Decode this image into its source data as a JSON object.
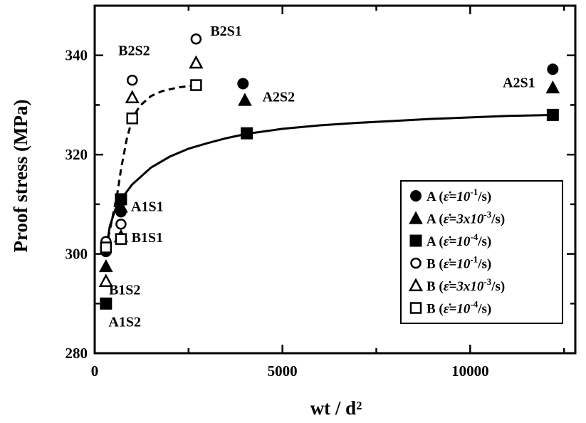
{
  "chart_data": {
    "type": "scatter",
    "xlabel": "wt / d²",
    "ylabel": "Proof stress (MPa)",
    "xlim": [
      0,
      12800
    ],
    "ylim": [
      280,
      350
    ],
    "x_ticks": [
      0,
      5000,
      10000
    ],
    "y_ticks": [
      280,
      300,
      320,
      340
    ],
    "x_tick_labels": [
      "0",
      "5000",
      "10000"
    ],
    "y_tick_labels": [
      "280",
      "300",
      "320",
      "340"
    ],
    "grid": false,
    "legend_position": "lower-right",
    "series": [
      {
        "name": "A (ε̇=10⁻¹/s)",
        "marker": "circle",
        "filled": true,
        "points": [
          [
            300,
            300.5
          ],
          [
            700,
            308.5
          ],
          [
            3950,
            334.3
          ],
          [
            12200,
            337.2
          ]
        ]
      },
      {
        "name": "A (ε̇=3x10⁻³/s)",
        "marker": "triangle",
        "filled": true,
        "points": [
          [
            300,
            297.5
          ],
          [
            700,
            309.5
          ],
          [
            4000,
            331
          ],
          [
            12200,
            333.5
          ]
        ]
      },
      {
        "name": "A (ε̇=10⁻⁴/s)",
        "marker": "square",
        "filled": true,
        "points": [
          [
            300,
            290
          ],
          [
            700,
            311
          ],
          [
            4050,
            324.3
          ],
          [
            12200,
            328
          ]
        ]
      },
      {
        "name": "B (ε̇=10⁻¹/s)",
        "marker": "circle",
        "filled": false,
        "points": [
          [
            300,
            302.5
          ],
          [
            700,
            306
          ],
          [
            1000,
            335
          ],
          [
            2700,
            343.3
          ]
        ]
      },
      {
        "name": "B (ε̇=3x10⁻³/s)",
        "marker": "triangle",
        "filled": false,
        "points": [
          [
            300,
            294.5
          ],
          [
            700,
            303.5
          ],
          [
            1000,
            331.5
          ],
          [
            2700,
            338.5
          ]
        ]
      },
      {
        "name": "B (ε̇=10⁻⁴/s)",
        "marker": "square",
        "filled": false,
        "points": [
          [
            300,
            301.3
          ],
          [
            700,
            303
          ],
          [
            1000,
            327.3
          ],
          [
            2700,
            334
          ]
        ]
      }
    ],
    "fit_curves": [
      {
        "style": "solid",
        "x": [
          300,
          400,
          550,
          700,
          1000,
          1500,
          2000,
          2500,
          3000,
          3500,
          4050,
          5000,
          6000,
          7000,
          8000,
          9000,
          10000,
          11000,
          12200
        ],
        "y": [
          300.5,
          305.5,
          309.0,
          311.0,
          314.0,
          317.4,
          319.6,
          321.2,
          322.3,
          323.3,
          324.2,
          325.2,
          325.9,
          326.4,
          326.8,
          327.2,
          327.5,
          327.8,
          328.0
        ]
      },
      {
        "style": "dashed",
        "x": [
          300,
          450,
          600,
          700,
          850,
          1000,
          1200,
          1500,
          1800,
          2200,
          2700
        ],
        "y": [
          301.0,
          306.5,
          312.0,
          317.0,
          323.0,
          327.2,
          329.8,
          331.8,
          332.8,
          333.5,
          334.0
        ]
      }
    ],
    "annotations": [
      {
        "text": "B2S2",
        "x": 1050,
        "y": 340
      },
      {
        "text": "B2S1",
        "x": 3500,
        "y": 344
      },
      {
        "text": "A2S2",
        "x": 4900,
        "y": 330.7
      },
      {
        "text": "A2S1",
        "x": 11300,
        "y": 333.6
      },
      {
        "text": "A1S1",
        "x": 1400,
        "y": 308.6
      },
      {
        "text": "B1S1",
        "x": 1400,
        "y": 302.4
      },
      {
        "text": "B1S2",
        "x": 800,
        "y": 291.8
      },
      {
        "text": "A1S2",
        "x": 800,
        "y": 285.4
      }
    ],
    "legend": [
      {
        "series": 0,
        "label": "A",
        "rate": "ε̇=10",
        "exp": "-1",
        "unit": "/s)"
      },
      {
        "series": 1,
        "label": "A",
        "rate": "ε̇=3x10",
        "exp": "-3",
        "unit": "/s)"
      },
      {
        "series": 2,
        "label": "A",
        "rate": "ε̇=10",
        "exp": "-4",
        "unit": "/s)"
      },
      {
        "series": 3,
        "label": "B",
        "rate": "ε̇=10",
        "exp": "-1",
        "unit": "/s)"
      },
      {
        "series": 4,
        "label": "B",
        "rate": "ε̇=3x10",
        "exp": "-3",
        "unit": "/s)"
      },
      {
        "series": 5,
        "label": "B",
        "rate": "ε̇=10",
        "exp": "-4",
        "unit": "/s)"
      }
    ]
  }
}
